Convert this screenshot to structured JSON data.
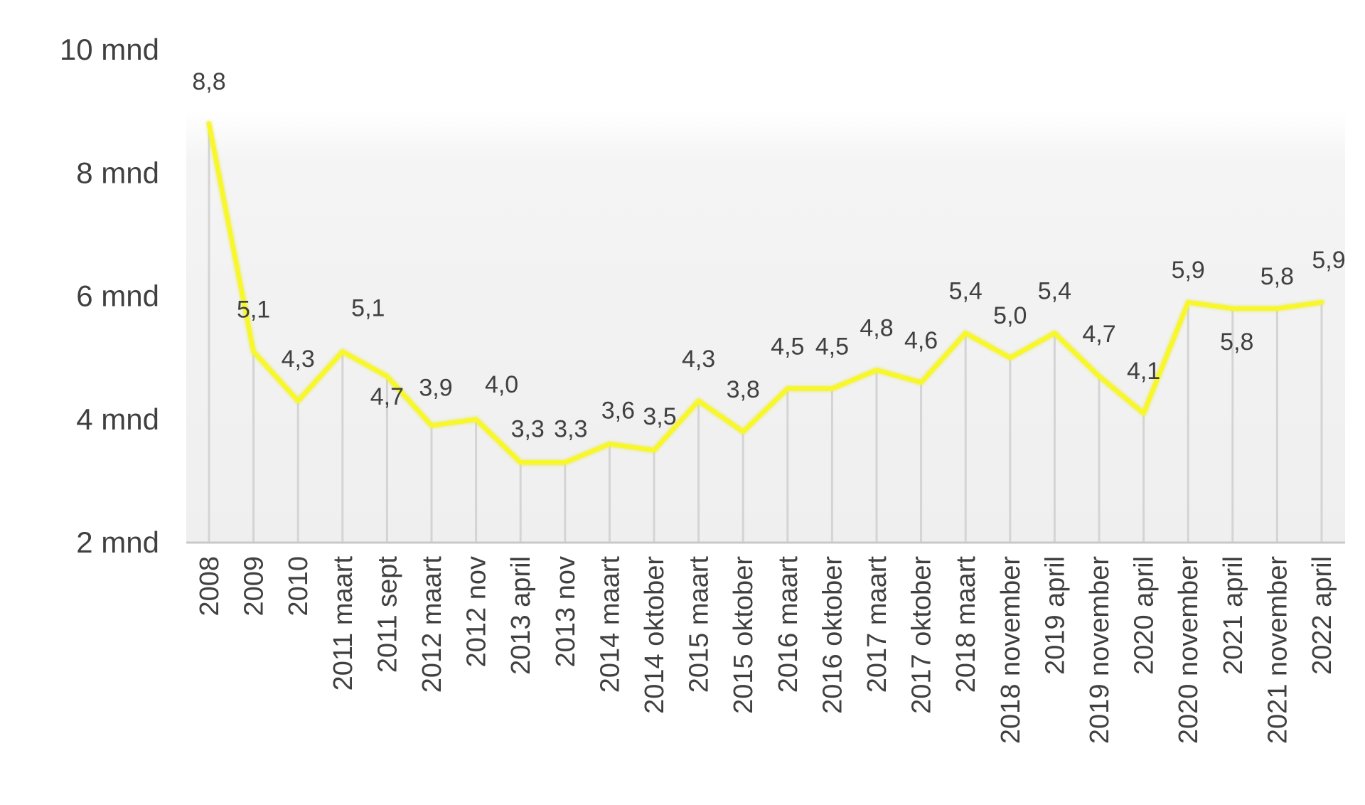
{
  "chart_data": {
    "type": "line",
    "title": "",
    "xlabel": "",
    "ylabel": "",
    "categories": [
      "2008",
      "2009",
      "2010",
      "2011 maart",
      "2011 sept",
      "2012 maart",
      "2012 nov",
      "2013 april",
      "2013 nov",
      "2014 maart",
      "2014 oktober",
      "2015 maart",
      "2015 oktober",
      "2016 maart",
      "2016 oktober",
      "2017 maart",
      "2017 oktober",
      "2018 maart",
      "2018 november",
      "2019 april",
      "2019 november",
      "2020 april",
      "2020 november",
      "2021 april",
      "2021 november",
      "2022 april"
    ],
    "series": [
      {
        "values": [
          8.8,
          5.1,
          4.3,
          5.1,
          4.7,
          3.9,
          4.0,
          3.3,
          3.3,
          3.6,
          3.5,
          4.3,
          3.8,
          4.5,
          4.5,
          4.8,
          4.6,
          5.4,
          5.0,
          5.4,
          4.7,
          4.1,
          5.9,
          5.8,
          5.8,
          5.9
        ],
        "labels": [
          "8,8",
          "5,1",
          "4,3",
          "5,1",
          "4,7",
          "3,9",
          "4,0",
          "3,3",
          "3,3",
          "3,6",
          "3,5",
          "4,3",
          "3,8",
          "4,5",
          "4,5",
          "4,8",
          "4,6",
          "5,4",
          "5,0",
          "5,4",
          "4,7",
          "4,1",
          "5,9",
          "5,8",
          "5,8",
          "5,9"
        ],
        "color": "#f7f72a"
      }
    ],
    "ylim": [
      2,
      10
    ],
    "yticks": [
      {
        "value": 10,
        "label": "10 mnd"
      },
      {
        "value": 8,
        "label": "8 mnd"
      },
      {
        "value": 6,
        "label": "6 mnd"
      },
      {
        "value": 4,
        "label": "4 mnd"
      },
      {
        "value": 2,
        "label": "2 mnd"
      }
    ],
    "grid": "vertical",
    "legend": "none"
  }
}
